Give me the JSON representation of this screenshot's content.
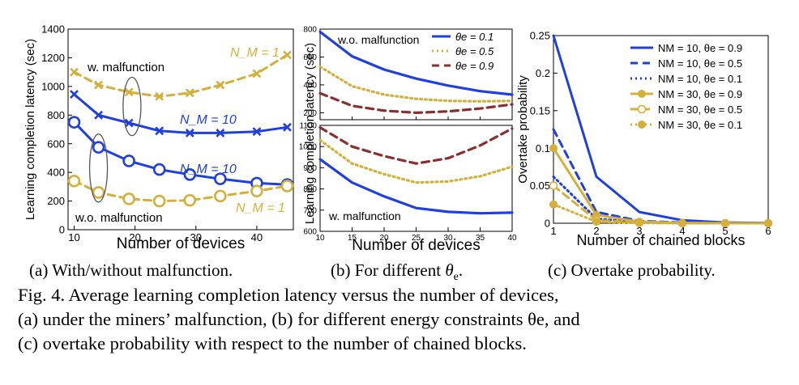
{
  "colors": {
    "blue": "#1f3fe0",
    "gold": "#d4b03a",
    "darkred": "#8b2e2e",
    "axis": "#000000"
  },
  "subcaptions": {
    "a": "(a) With/without malfunction.",
    "b_prefix": "(b) For different ",
    "b_symbol": "θ",
    "b_sub": "e",
    "b_suffix": ".",
    "c": "(c) Overtake probability."
  },
  "caption": {
    "line1": "Fig. 4.  Average learning completion latency versus the number of devices,",
    "line2": "(a) under the miners’ malfunction, (b) for different energy constraints θe, and",
    "line3": "(c) overtake probability with respect to the number of chained blocks."
  },
  "chart_data": [
    {
      "id": "a",
      "type": "line",
      "title": "",
      "xlabel": "Number of devices",
      "ylabel": "Learning completion latency (sec)",
      "xlim": [
        9,
        46
      ],
      "ylim": [
        0,
        1400
      ],
      "xticks": [
        10,
        20,
        30,
        40
      ],
      "yticks": [
        0,
        200,
        400,
        600,
        800,
        1000,
        1200,
        1400
      ],
      "x": [
        10,
        14,
        19,
        24,
        29,
        34,
        40,
        45
      ],
      "series": [
        {
          "name": "NM=1, w. malfunction",
          "color": "gold",
          "dash": "dashed",
          "marker": "x",
          "values": [
            1100,
            1010,
            960,
            930,
            955,
            1010,
            1090,
            1220
          ]
        },
        {
          "name": "NM=10, w. malfunction",
          "color": "blue",
          "dash": "solid",
          "marker": "x",
          "values": [
            945,
            800,
            745,
            690,
            675,
            675,
            685,
            715
          ]
        },
        {
          "name": "NM=10, w.o. malfunction",
          "color": "blue",
          "dash": "solid",
          "marker": "o",
          "values": [
            750,
            575,
            480,
            420,
            385,
            355,
            325,
            315
          ]
        },
        {
          "name": "NM=1, w.o. malfunction",
          "color": "gold",
          "dash": "dashed",
          "marker": "o",
          "values": [
            340,
            260,
            215,
            200,
            205,
            235,
            270,
            305
          ]
        }
      ],
      "annotations": {
        "w_malfunction": "w. malfunction",
        "wo_malfunction": "w.o. malfunction",
        "nm1_top": "N_M = 1",
        "nm10_top": "N_M = 10",
        "nm10_bottom": "N_M = 10",
        "nm1_bottom": "N_M = 1"
      }
    },
    {
      "id": "b",
      "type": "line",
      "xlabel": "Number of devices",
      "ylabel": "Learning completion latency (sec)",
      "xlim": [
        10,
        40
      ],
      "xticks": [
        10,
        15,
        20,
        25,
        30,
        35,
        40
      ],
      "x": [
        10,
        15,
        20,
        25,
        30,
        35,
        40
      ],
      "legend": [
        "θe = 0.1",
        "θe = 0.5",
        "θe = 0.9"
      ],
      "panels": [
        {
          "name": "top",
          "label": "w.o. malfunction",
          "ylim": [
            150,
            800
          ],
          "yticks": [
            200,
            400,
            600,
            800
          ],
          "series": [
            {
              "name": "θe = 0.1",
              "color": "blue",
              "dash": "solid",
              "values": [
                780,
                605,
                510,
                445,
                395,
                355,
                330
              ]
            },
            {
              "name": "θe = 0.5",
              "color": "gold",
              "dash": "dotted",
              "values": [
                530,
                390,
                330,
                300,
                285,
                282,
                285
              ]
            },
            {
              "name": "θe = 0.9",
              "color": "darkred",
              "dash": "dashed",
              "values": [
                340,
                250,
                215,
                200,
                210,
                230,
                260
              ]
            }
          ]
        },
        {
          "name": "bottom",
          "label": "w. malfunction",
          "ylim": [
            600,
            1100
          ],
          "yticks": [
            600,
            700,
            800,
            900,
            1000,
            1100
          ],
          "series": [
            {
              "name": "θe = 0.1",
              "color": "blue",
              "dash": "solid",
              "values": [
                940,
                830,
                765,
                710,
                692,
                685,
                688
              ]
            },
            {
              "name": "θe = 0.5",
              "color": "gold",
              "dash": "dotted",
              "values": [
                1030,
                920,
                870,
                830,
                835,
                860,
                905
              ]
            },
            {
              "name": "θe = 0.9",
              "color": "darkred",
              "dash": "dashed",
              "values": [
                1090,
                1000,
                955,
                920,
                945,
                1005,
                1085
              ]
            }
          ]
        }
      ]
    },
    {
      "id": "c",
      "type": "line",
      "xlabel": "Number of chained blocks",
      "ylabel": "Overtake probability",
      "xlim": [
        1,
        6
      ],
      "ylim": [
        0,
        0.25
      ],
      "xticks": [
        1,
        2,
        3,
        4,
        5,
        6
      ],
      "yticks": [
        0,
        0.05,
        0.1,
        0.15,
        0.2,
        0.25
      ],
      "x": [
        1,
        2,
        3,
        4,
        5,
        6
      ],
      "series": [
        {
          "name": "NM = 10, θe = 0.9",
          "color": "blue",
          "dash": "solid",
          "marker": "none",
          "values": [
            0.25,
            0.062,
            0.015,
            0.004,
            0.001,
            0.0003
          ]
        },
        {
          "name": "NM = 10, θe = 0.5",
          "color": "blue",
          "dash": "dashed",
          "marker": "none",
          "values": [
            0.125,
            0.015,
            0.003,
            0.001,
            0.0002,
            0.0001
          ]
        },
        {
          "name": "NM = 10, θe = 0.1",
          "color": "blue",
          "dash": "dotted",
          "marker": "none",
          "values": [
            0.062,
            0.006,
            0.001,
            0.0002,
            0.0001,
            0.0
          ]
        },
        {
          "name": "NM = 30, θe = 0.9",
          "color": "gold",
          "dash": "solid",
          "marker": "filled",
          "values": [
            0.1,
            0.011,
            0.002,
            0.0005,
            0.0001,
            0.0
          ]
        },
        {
          "name": "NM = 30, θe = 0.5",
          "color": "gold",
          "dash": "dashed",
          "marker": "open",
          "values": [
            0.05,
            0.004,
            0.001,
            0.0001,
            0.0,
            0.0
          ]
        },
        {
          "name": "NM = 30, θe = 0.1",
          "color": "gold",
          "dash": "dotted",
          "marker": "filled",
          "values": [
            0.025,
            0.002,
            0.0003,
            0.0,
            0.0,
            0.0
          ]
        }
      ]
    }
  ]
}
